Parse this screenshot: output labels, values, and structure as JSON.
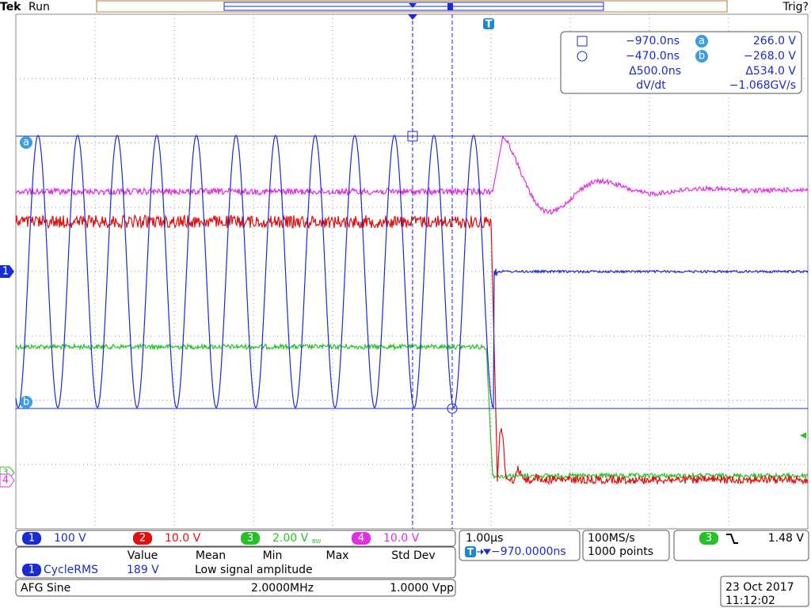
{
  "header": {
    "brand": "Tek",
    "status": "Run",
    "trigger_status": "Trig?"
  },
  "markers": {
    "trigger": "T",
    "cursor_a": "a",
    "cursor_b": "b",
    "ch1": "1",
    "ch3": "3",
    "ch4": "4"
  },
  "cursor_readout": {
    "rows": [
      [
        "−970.0ns",
        "a",
        "266.0 V"
      ],
      [
        "−470.0ns",
        "b",
        "−268.0 V"
      ],
      [
        "Δ500.0ns",
        "Δ534.0 V"
      ],
      [
        "dV/dt",
        "−1.068GV/s"
      ]
    ]
  },
  "channels": [
    {
      "number": "1",
      "scale": "100 V"
    },
    {
      "number": "2",
      "scale": "10.0 V"
    },
    {
      "number": "3",
      "scale": "2.00 V"
    },
    {
      "number": "4",
      "scale": "10.0 V"
    }
  ],
  "bandwidth_limit": "BW",
  "measurements": {
    "headers": [
      "Value",
      "Mean",
      "Min",
      "Max",
      "Std Dev"
    ],
    "rows": [
      {
        "source": "1",
        "name": "CycleRMS",
        "value": "189 V",
        "note": "Low signal amplitude"
      }
    ]
  },
  "afg": {
    "label": "AFG Sine",
    "frequency": "2.0000MHz",
    "amplitude": "1.0000 Vpp"
  },
  "timebase": {
    "scale": "1.00µs",
    "position": "−970.0000ns"
  },
  "acquisition": {
    "sample_rate": "100MS/s",
    "record_length": "1000 points"
  },
  "trigger": {
    "source": "3",
    "level": "1.48 V"
  },
  "datetime": {
    "date": "23 Oct 2017",
    "time": "11:12:02"
  }
}
